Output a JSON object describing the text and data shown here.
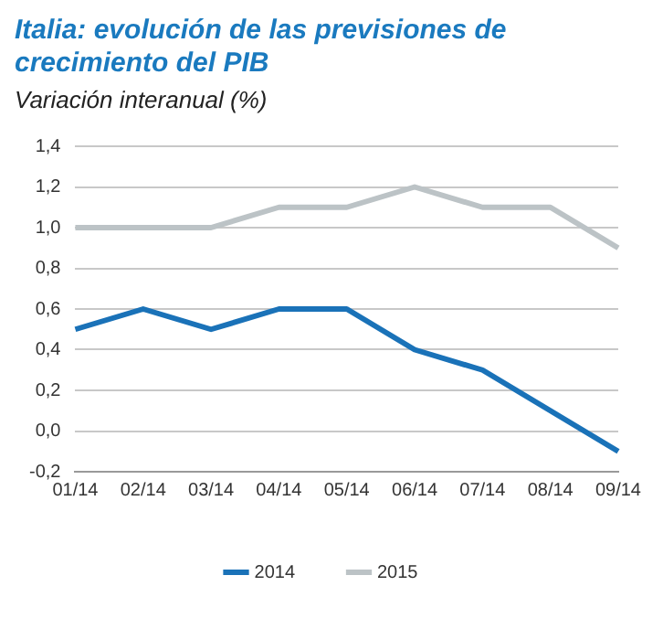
{
  "chart_data": {
    "type": "line",
    "title": "Italia: evolución de las previsiones de crecimiento del PIB",
    "subtitle": "Variación interanual (%)",
    "categories": [
      "01/14",
      "02/14",
      "03/14",
      "04/14",
      "05/14",
      "06/14",
      "07/14",
      "08/14",
      "09/14"
    ],
    "series": [
      {
        "name": "2014",
        "color": "#1a72b8",
        "values": [
          0.5,
          0.6,
          0.5,
          0.6,
          0.6,
          0.4,
          0.3,
          0.1,
          -0.1
        ]
      },
      {
        "name": "2015",
        "color": "#bcc3c6",
        "values": [
          1.0,
          1.0,
          1.0,
          1.1,
          1.1,
          1.2,
          1.1,
          1.1,
          0.9
        ]
      }
    ],
    "ylim": [
      -0.2,
      1.4
    ],
    "yticks": [
      {
        "value": -0.2,
        "label": "-0,2"
      },
      {
        "value": 0,
        "label": "0,0"
      },
      {
        "value": 0.2,
        "label": "0,2"
      },
      {
        "value": 0.4,
        "label": "0,4"
      },
      {
        "value": 0.6,
        "label": "0,6"
      },
      {
        "value": 0.8,
        "label": "0,8"
      },
      {
        "value": 1.0,
        "label": "1,0"
      },
      {
        "value": 1.2,
        "label": "1,2"
      },
      {
        "value": 1.4,
        "label": "1,4"
      }
    ],
    "grid": "y",
    "legend": "bottom",
    "marker": "none",
    "line_style": "solid"
  }
}
